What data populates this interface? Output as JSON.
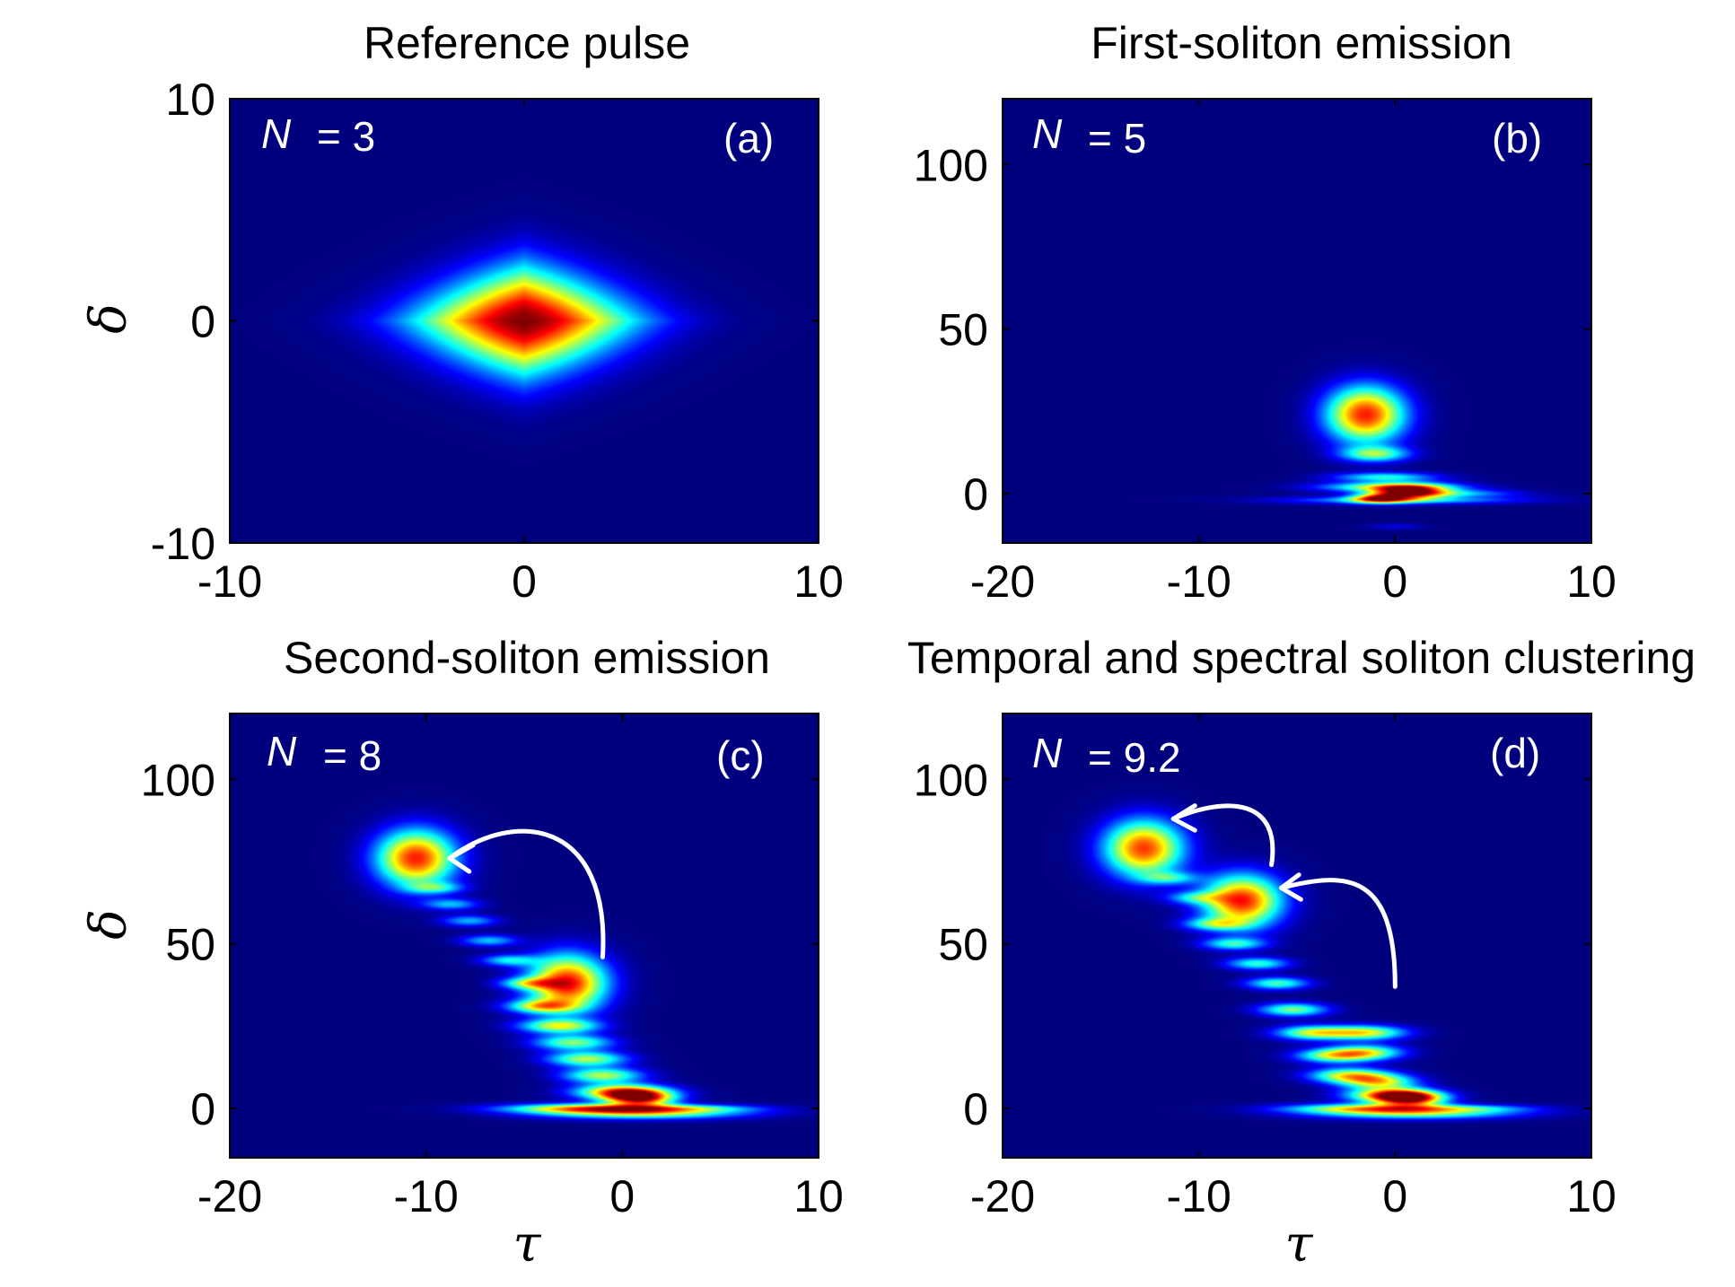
{
  "colors": {
    "background": "#00007f",
    "colormap": [
      "#00007f",
      "#0000ff",
      "#00ffff",
      "#ffff00",
      "#ff0000",
      "#7f0000"
    ],
    "annotation": "#ffffff"
  },
  "chart_data": [
    {
      "type": "heatmap",
      "panel": "(a)",
      "title": "Reference pulse",
      "annotation_label": "N",
      "annotation_value": "= 3",
      "xlabel": "",
      "ylabel": "δ",
      "xlim": [
        -10,
        10
      ],
      "ylim": [
        -10,
        10
      ],
      "xticks": [
        -10,
        0,
        10
      ],
      "yticks": [
        -10,
        0,
        10
      ],
      "xtick_labels": [
        "-10",
        "0",
        "10"
      ],
      "ytick_labels": [
        "-10",
        "0",
        "10"
      ],
      "blobs": [
        {
          "x": 0,
          "y": 0,
          "sx": 2.6,
          "sy": 1.7,
          "a": 1.0,
          "shape": "diamond"
        }
      ],
      "arrows": []
    },
    {
      "type": "heatmap",
      "panel": "(b)",
      "title": "First-soliton emission",
      "annotation_label": "N",
      "annotation_value": "= 5",
      "xlabel": "",
      "ylabel": "",
      "xlim": [
        -20,
        10
      ],
      "ylim": [
        -15,
        120
      ],
      "xticks": [
        -20,
        -10,
        0,
        10
      ],
      "yticks": [
        0,
        50,
        100
      ],
      "xtick_labels": [
        "-20",
        "-10",
        "0",
        "10"
      ],
      "ytick_labels": [
        "0",
        "50",
        "100"
      ],
      "blobs": [
        {
          "x": -1.5,
          "y": 24,
          "sx": 1.4,
          "sy": 6.0,
          "a": 0.85
        },
        {
          "x": -1.0,
          "y": 12,
          "sx": 1.2,
          "sy": 1.6,
          "a": 0.45
        },
        {
          "x": -0.5,
          "y": 5,
          "sx": 1.8,
          "sy": 1.0,
          "a": 0.4
        },
        {
          "x": -0.2,
          "y": 2,
          "sx": 2.4,
          "sy": 1.0,
          "a": 0.55
        },
        {
          "x": 0.7,
          "y": 0.5,
          "sx": 1.3,
          "sy": 1.4,
          "a": 0.9
        },
        {
          "x": -0.8,
          "y": -1.5,
          "sx": 1.0,
          "sy": 1.0,
          "a": 0.7
        },
        {
          "x": 0.4,
          "y": -2,
          "sx": 4.0,
          "sy": 0.8,
          "a": 0.35
        },
        {
          "x": 3.0,
          "y": 0,
          "sx": 2.2,
          "sy": 0.8,
          "a": 0.3
        },
        {
          "x": 0,
          "y": -10,
          "sx": 1.0,
          "sy": 0.6,
          "a": 0.1
        }
      ],
      "arrows": []
    },
    {
      "type": "heatmap",
      "panel": "(c)",
      "title": "Second-soliton emission",
      "annotation_label": "N",
      "annotation_value": "= 8",
      "xlabel": "τ",
      "ylabel": "δ",
      "xlim": [
        -20,
        10
      ],
      "ylim": [
        -15,
        120
      ],
      "xticks": [
        -20,
        -10,
        0,
        10
      ],
      "yticks": [
        0,
        50,
        100
      ],
      "xtick_labels": [
        "-20",
        "-10",
        "0",
        "10"
      ],
      "ytick_labels": [
        "0",
        "50",
        "100"
      ],
      "blobs": [
        {
          "x": -10.5,
          "y": 76,
          "sx": 1.4,
          "sy": 6.0,
          "a": 0.85
        },
        {
          "x": -2.8,
          "y": 38,
          "sx": 1.4,
          "sy": 6.0,
          "a": 0.88
        },
        {
          "x": -9.5,
          "y": 67,
          "sx": 1.0,
          "sy": 1.2,
          "a": 0.3
        },
        {
          "x": -8.7,
          "y": 62,
          "sx": 1.0,
          "sy": 1.2,
          "a": 0.3
        },
        {
          "x": -7.8,
          "y": 57,
          "sx": 1.0,
          "sy": 1.2,
          "a": 0.3
        },
        {
          "x": -6.8,
          "y": 51,
          "sx": 1.0,
          "sy": 1.2,
          "a": 0.32
        },
        {
          "x": -5.8,
          "y": 45,
          "sx": 1.0,
          "sy": 1.2,
          "a": 0.35
        },
        {
          "x": -4.8,
          "y": 38,
          "sx": 1.0,
          "sy": 1.2,
          "a": 0.4
        },
        {
          "x": -4.2,
          "y": 31,
          "sx": 1.2,
          "sy": 1.4,
          "a": 0.5
        },
        {
          "x": -3.2,
          "y": 25,
          "sx": 1.4,
          "sy": 1.5,
          "a": 0.55
        },
        {
          "x": -2.5,
          "y": 20,
          "sx": 1.4,
          "sy": 1.6,
          "a": 0.5
        },
        {
          "x": -1.8,
          "y": 15,
          "sx": 1.4,
          "sy": 1.6,
          "a": 0.55
        },
        {
          "x": -1.0,
          "y": 10,
          "sx": 1.4,
          "sy": 1.6,
          "a": 0.55
        },
        {
          "x": 0.0,
          "y": 5,
          "sx": 1.6,
          "sy": 1.6,
          "a": 0.8
        },
        {
          "x": 0.9,
          "y": 3,
          "sx": 1.2,
          "sy": 1.6,
          "a": 0.85
        },
        {
          "x": -1.5,
          "y": 0,
          "sx": 3.0,
          "sy": 1.0,
          "a": 0.7
        },
        {
          "x": 1.0,
          "y": -1.5,
          "sx": 3.5,
          "sy": 1.2,
          "a": 0.55
        },
        {
          "x": 3.5,
          "y": 0,
          "sx": 2.5,
          "sy": 0.8,
          "a": 0.3
        }
      ],
      "arrows": [
        {
          "path": [
            [
              -1.0,
              46
            ],
            [
              -0.6,
              88
            ],
            [
              -5.5,
              91
            ],
            [
              -8.8,
              76
            ]
          ],
          "head": [
            [
              -7.6,
              80
            ],
            [
              -8.8,
              76
            ],
            [
              -7.8,
              72
            ]
          ]
        }
      ]
    },
    {
      "type": "heatmap",
      "panel": "(d)",
      "title": "Temporal and spectral soliton clustering",
      "annotation_label": "N",
      "annotation_value": "= 9.2",
      "xlabel": "τ",
      "ylabel": "",
      "xlim": [
        -20,
        10
      ],
      "ylim": [
        -15,
        120
      ],
      "xticks": [
        -20,
        -10,
        0,
        10
      ],
      "yticks": [
        0,
        50,
        100
      ],
      "xtick_labels": [
        "-20",
        "-10",
        "0",
        "10"
      ],
      "ytick_labels": [
        "0",
        "50",
        "100"
      ],
      "blobs": [
        {
          "x": -12.8,
          "y": 79,
          "sx": 1.4,
          "sy": 6.0,
          "a": 0.82
        },
        {
          "x": -7.8,
          "y": 63,
          "sx": 1.4,
          "sy": 5.5,
          "a": 0.86
        },
        {
          "x": -11.5,
          "y": 70,
          "sx": 1.0,
          "sy": 1.3,
          "a": 0.3
        },
        {
          "x": -10.2,
          "y": 64,
          "sx": 1.0,
          "sy": 1.3,
          "a": 0.3
        },
        {
          "x": -9.2,
          "y": 56,
          "sx": 1.1,
          "sy": 1.3,
          "a": 0.38
        },
        {
          "x": -8.2,
          "y": 50,
          "sx": 1.1,
          "sy": 1.3,
          "a": 0.4
        },
        {
          "x": -7.0,
          "y": 44,
          "sx": 1.1,
          "sy": 1.3,
          "a": 0.42
        },
        {
          "x": -6.0,
          "y": 38,
          "sx": 1.1,
          "sy": 1.3,
          "a": 0.45
        },
        {
          "x": -5.2,
          "y": 30,
          "sx": 1.2,
          "sy": 1.4,
          "a": 0.5
        },
        {
          "x": -4.2,
          "y": 23,
          "sx": 1.3,
          "sy": 1.5,
          "a": 0.55
        },
        {
          "x": -1.5,
          "y": 23,
          "sx": 1.4,
          "sy": 1.5,
          "a": 0.6
        },
        {
          "x": -3.2,
          "y": 16,
          "sx": 1.3,
          "sy": 1.5,
          "a": 0.5
        },
        {
          "x": -1.5,
          "y": 17,
          "sx": 1.3,
          "sy": 1.6,
          "a": 0.55
        },
        {
          "x": -2.3,
          "y": 10,
          "sx": 1.4,
          "sy": 1.6,
          "a": 0.6
        },
        {
          "x": -0.8,
          "y": 8,
          "sx": 1.3,
          "sy": 1.6,
          "a": 0.55
        },
        {
          "x": -0.3,
          "y": 4,
          "sx": 1.5,
          "sy": 1.5,
          "a": 0.7
        },
        {
          "x": 0.8,
          "y": 3,
          "sx": 1.2,
          "sy": 1.6,
          "a": 0.85
        },
        {
          "x": -1.5,
          "y": 0,
          "sx": 2.8,
          "sy": 1.0,
          "a": 0.55
        },
        {
          "x": 1.0,
          "y": -1.5,
          "sx": 3.5,
          "sy": 1.2,
          "a": 0.5
        },
        {
          "x": 3.5,
          "y": 0,
          "sx": 2.5,
          "sy": 0.8,
          "a": 0.28
        }
      ],
      "arrows": [
        {
          "path": [
            [
              0.0,
              37
            ],
            [
              0.0,
              72
            ],
            [
              -2.5,
              72
            ],
            [
              -5.8,
              67
            ]
          ],
          "head": [
            [
              -4.9,
              71
            ],
            [
              -5.8,
              67
            ],
            [
              -4.8,
              63.5
            ]
          ]
        },
        {
          "path": [
            [
              -6.3,
              74
            ],
            [
              -5.8,
              94
            ],
            [
              -8.5,
              95
            ],
            [
              -11.3,
              88
            ]
          ],
          "head": [
            [
              -10.2,
              92
            ],
            [
              -11.3,
              88
            ],
            [
              -10.2,
              84.5
            ]
          ]
        }
      ]
    }
  ]
}
